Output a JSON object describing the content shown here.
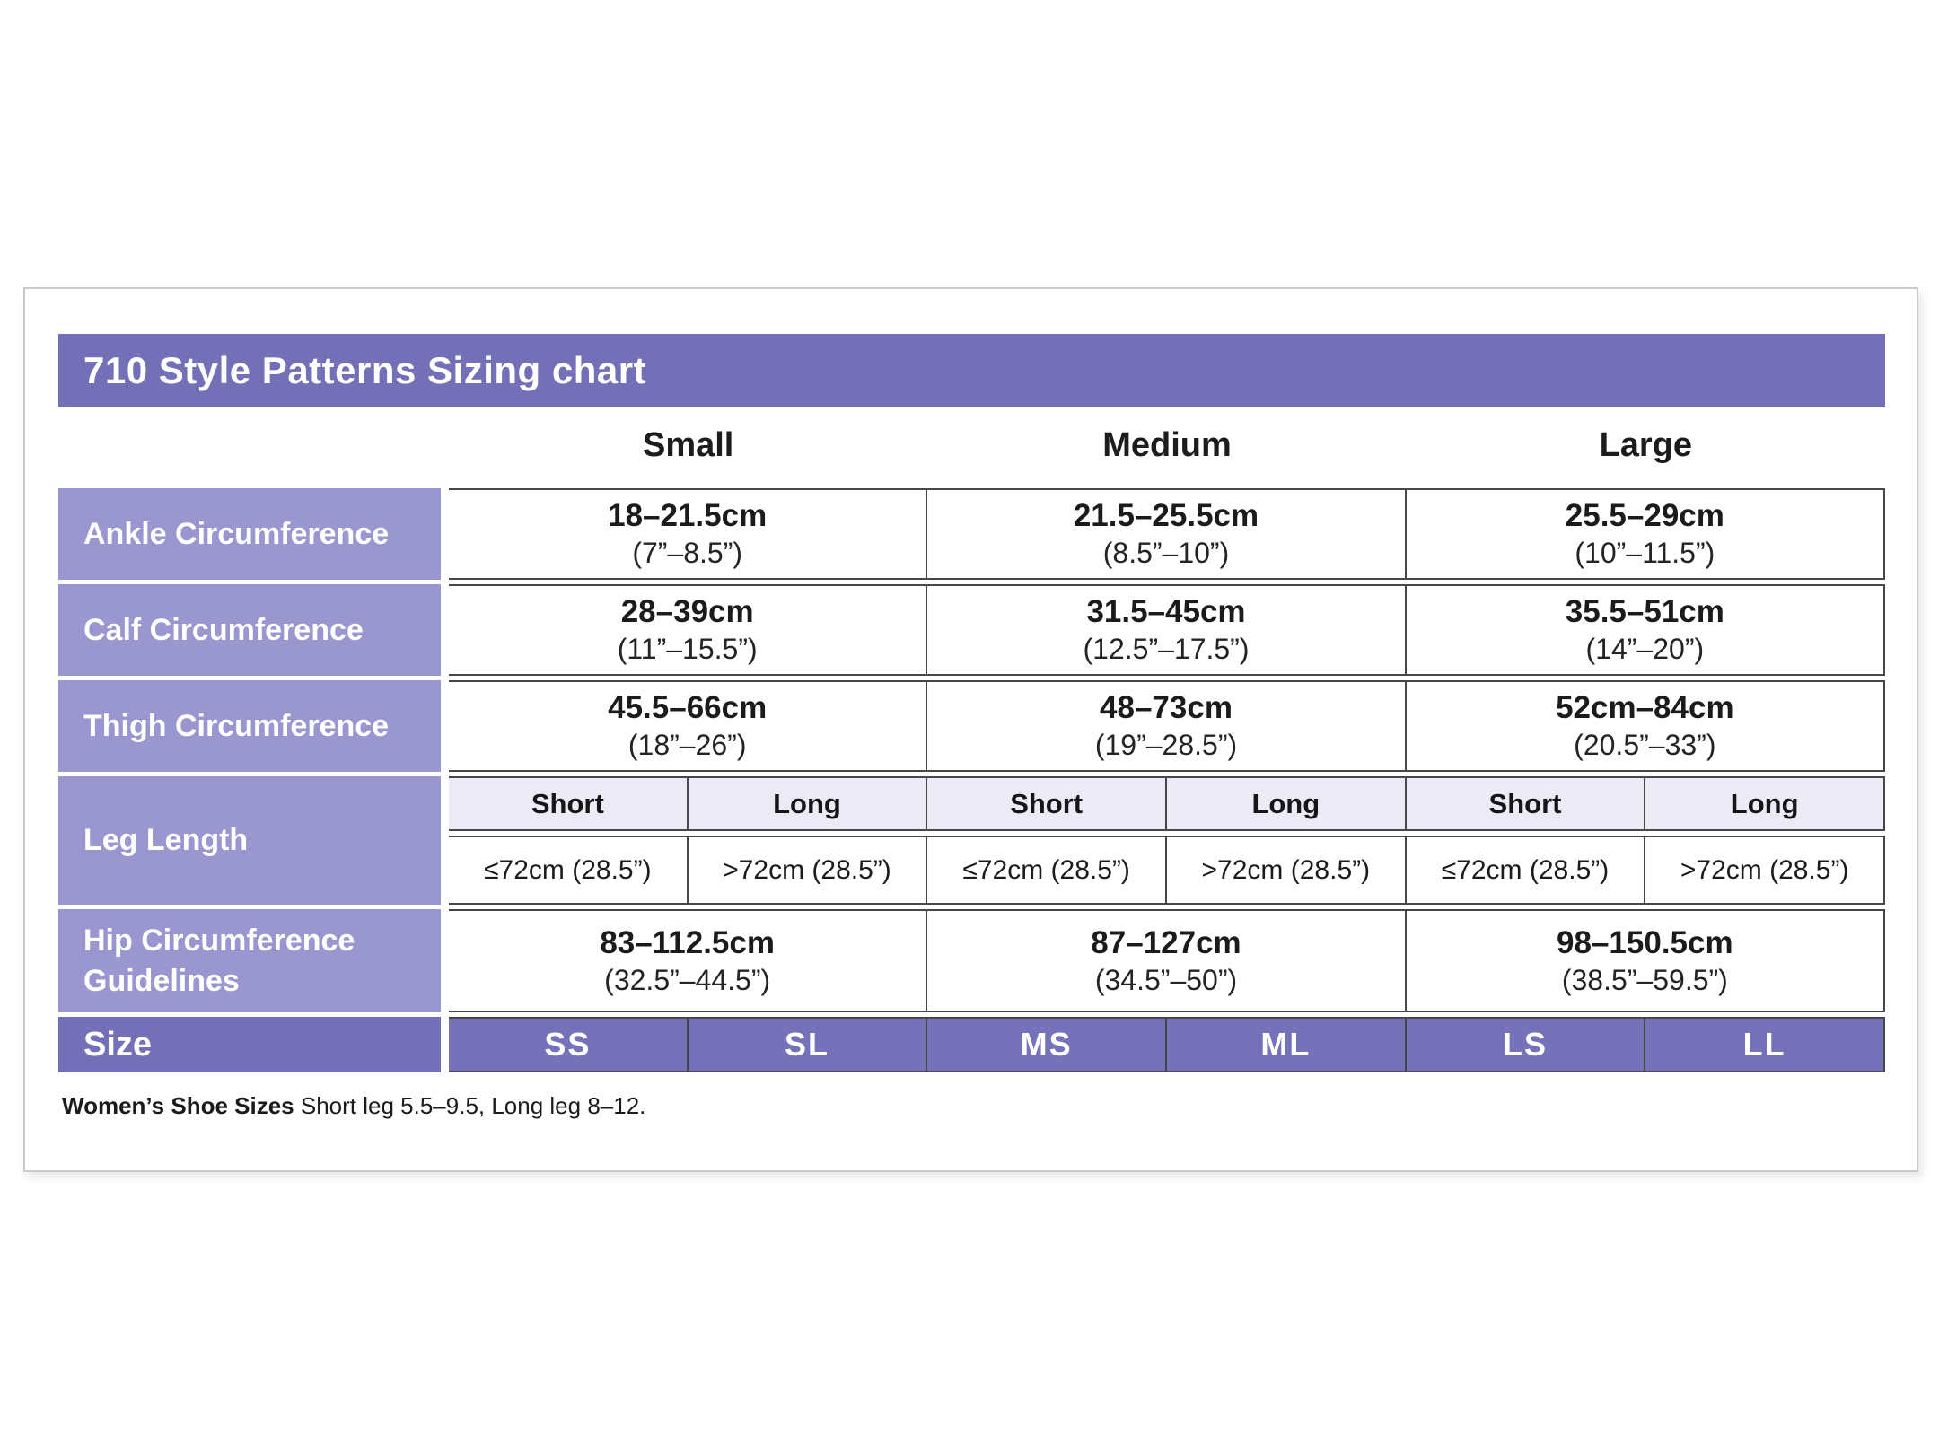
{
  "title": "710 Style Patterns Sizing chart",
  "columns": [
    "Small",
    "Medium",
    "Large"
  ],
  "rows": {
    "ankle": {
      "label": "Ankle Circumference",
      "values": [
        {
          "cm": "18–21.5cm",
          "inch": "(7”–8.5”)"
        },
        {
          "cm": "21.5–25.5cm",
          "inch": "(8.5”–10”)"
        },
        {
          "cm": "25.5–29cm",
          "inch": "(10”–11.5”)"
        }
      ]
    },
    "calf": {
      "label": "Calf Circumference",
      "values": [
        {
          "cm": "28–39cm",
          "inch": "(11”–15.5”)"
        },
        {
          "cm": "31.5–45cm",
          "inch": "(12.5”–17.5”)"
        },
        {
          "cm": "35.5–51cm",
          "inch": "(14”–20”)"
        }
      ]
    },
    "thigh": {
      "label": "Thigh Circumference",
      "values": [
        {
          "cm": "45.5–66cm",
          "inch": "(18”–26”)"
        },
        {
          "cm": "48–73cm",
          "inch": "(19”–28.5”)"
        },
        {
          "cm": "52cm–84cm",
          "inch": "(20.5”–33”)"
        }
      ]
    },
    "leg_length": {
      "label": "Leg Length",
      "sub_headers": [
        "Short",
        "Long",
        "Short",
        "Long",
        "Short",
        "Long"
      ],
      "values": [
        "≤72cm (28.5”)",
        ">72cm (28.5”)",
        "≤72cm (28.5”)",
        ">72cm (28.5”)",
        "≤72cm (28.5”)",
        ">72cm (28.5”)"
      ]
    },
    "hip": {
      "label": "Hip Circumference Guidelines",
      "values": [
        {
          "cm": "83–112.5cm",
          "inch": "(32.5”–44.5”)"
        },
        {
          "cm": "87–127cm",
          "inch": "(34.5”–50”)"
        },
        {
          "cm": "98–150.5cm",
          "inch": "(38.5”–59.5”)"
        }
      ]
    },
    "size": {
      "label": "Size",
      "values": [
        "SS",
        "SL",
        "MS",
        "ML",
        "LS",
        "LL"
      ]
    }
  },
  "footnote": {
    "bold": "Women’s Shoe Sizes",
    "text": " Short leg 5.5–9.5, Long leg 8–12."
  },
  "colors": {
    "header_purple": "#7470B8",
    "label_purple": "#9A96D0",
    "size_cell_purple": "#7672BA",
    "subheader_lavender": "#EBEAF5",
    "border_dark": "#46464b",
    "card_border": "#c9cacc"
  }
}
